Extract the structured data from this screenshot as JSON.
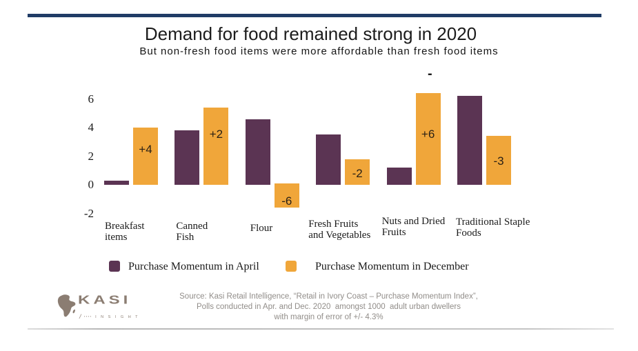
{
  "header": {
    "title": "Demand for food remained strong in 2020",
    "subtitle": "But non-fresh food items were more affordable than fresh food items"
  },
  "chart_data": {
    "type": "bar",
    "title": "Demand for food remained strong in 2020",
    "subtitle": "But non-fresh food items were more affordable than fresh food items",
    "categories": [
      "Breakfast items",
      "Canned Fish",
      "Flour",
      "Fresh Fruits and Vegetables",
      "Nuts and Dried Fruits",
      "Traditional Staple Foods"
    ],
    "category_lines": [
      [
        "Breakfast",
        "items"
      ],
      [
        "Canned",
        "Fish"
      ],
      [
        "Flour"
      ],
      [
        "Fresh Fruits",
        "and Vegetables"
      ],
      [
        "Nuts and Dried",
        "Fruits"
      ],
      [
        "Traditional Staple",
        "Foods"
      ]
    ],
    "y_ticks": [
      6,
      4,
      2,
      0,
      -2
    ],
    "ylim": [
      -2,
      7
    ],
    "grid": false,
    "legend_position": "bottom",
    "series": [
      {
        "name": "Purchase Momentum in April",
        "color": "#5b3453",
        "values": [
          0.3,
          3.8,
          4.6,
          3.5,
          1.2,
          6.2
        ]
      },
      {
        "name": "Purchase Momentum in December",
        "color": "#f0a63a",
        "values": [
          4.0,
          5.4,
          -1.6,
          1.8,
          6.4,
          3.4
        ],
        "bar_from": [
          0,
          0,
          0.1,
          0,
          0,
          0
        ],
        "labels": [
          "+4",
          "+2",
          "-6",
          "-2",
          "+6",
          "-3"
        ]
      }
    ],
    "annotations": [
      {
        "text": "-",
        "note": "small dash mark above Nuts and Dried Fruits December bar"
      }
    ]
  },
  "source": {
    "line1": "Source: Kasi Retail Intelligence, “Retail in Ivory Coast – Purchase Momentum Index”,",
    "line2": "Polls conducted in Apr. and Dec. 2020  amongst 1000  adult urban dwellers",
    "line3": "with margin of error of +/- 4.3%"
  },
  "logo": {
    "name": "KASI",
    "slash": "/",
    "dots": "▪▪▪▪",
    "tagline": "I N S I G H T",
    "color": "#8b7d72"
  },
  "colors": {
    "april": "#5b3453",
    "december": "#f0a63a",
    "top_bar": "#203c66",
    "bar_label": "#2b2115",
    "source_text": "#918d89"
  }
}
